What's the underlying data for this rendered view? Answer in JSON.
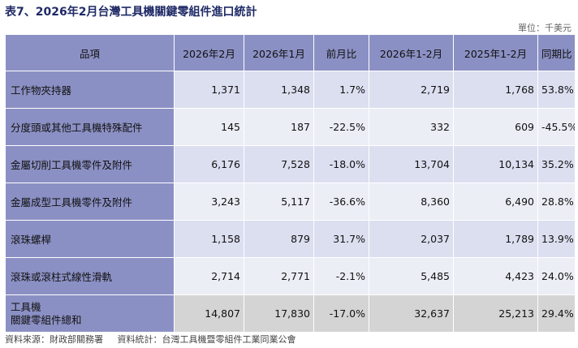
{
  "title": "表7、2026年2月台灣工具機關鍵零組件進口統計",
  "unit": "單位：千美元",
  "headers": [
    "品項",
    "2026年2月",
    "2026年1月",
    "前月比",
    "2026年1-2月",
    "2025年1-2月",
    "同期比"
  ],
  "rows": [
    {
      "name": "工作物夾持器",
      "feb2026": "1,371",
      "jan2026": "1,348",
      "mom": "1.7%",
      "ytd2026": "2,719",
      "ytd2025": "1,768",
      "yoy": "53.8%"
    },
    {
      "name": "分度頭或其他工具機特殊配件",
      "feb2026": "145",
      "jan2026": "187",
      "mom": "-22.5%",
      "ytd2026": "332",
      "ytd2025": "609",
      "yoy": "-45.5%"
    },
    {
      "name": "金屬切削工具機零件及附件",
      "feb2026": "6,176",
      "jan2026": "7,528",
      "mom": "-18.0%",
      "ytd2026": "13,704",
      "ytd2025": "10,134",
      "yoy": "35.2%"
    },
    {
      "name": "金屬成型工具機零件及附件",
      "feb2026": "3,243",
      "jan2026": "5,117",
      "mom": "-36.6%",
      "ytd2026": "8,360",
      "ytd2025": "6,490",
      "yoy": "28.8%"
    },
    {
      "name": "滾珠螺桿",
      "feb2026": "1,158",
      "jan2026": "879",
      "mom": "31.7%",
      "ytd2026": "2,037",
      "ytd2025": "1,789",
      "yoy": "13.9%"
    },
    {
      "name": "滾珠或滾柱式線性滑軌",
      "feb2026": "2,714",
      "jan2026": "2,771",
      "mom": "-2.1%",
      "ytd2026": "5,485",
      "ytd2025": "4,423",
      "yoy": "24.0%"
    }
  ],
  "total": {
    "name_line1": "工具機",
    "name_line2": "關鍵零組件總和",
    "feb2026": "14,807",
    "jan2026": "17,830",
    "mom": "-17.0%",
    "ytd2026": "32,637",
    "ytd2025": "25,213",
    "yoy": "29.4%"
  },
  "footer": {
    "source": "資料來源：財政部關務署",
    "stats": "資料統計：台灣工具機暨零組件工業同業公會"
  }
}
